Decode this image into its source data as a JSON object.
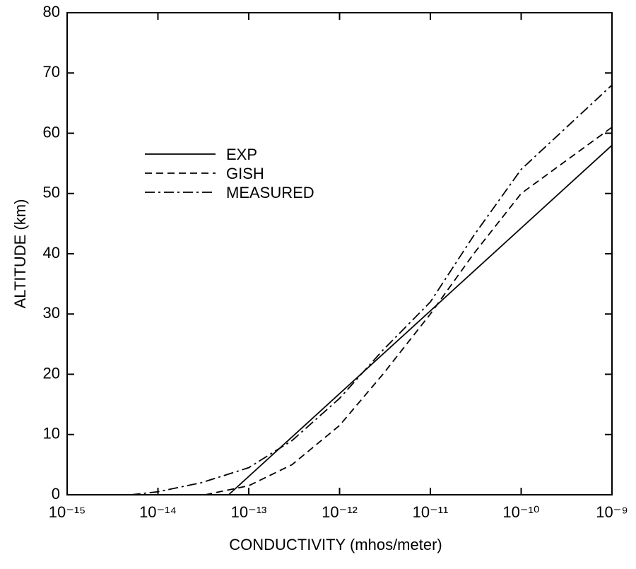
{
  "chart_data": {
    "type": "line",
    "xlabel": "CONDUCTIVITY (mhos/meter)",
    "ylabel": "ALTITUDE (km)",
    "xscale": "log",
    "xlim": [
      1e-15,
      1e-09
    ],
    "xticks": [
      {
        "value": 1e-15,
        "label": "10⁻¹⁵"
      },
      {
        "value": 1e-14,
        "label": "10⁻¹⁴"
      },
      {
        "value": 1e-13,
        "label": "10⁻¹³"
      },
      {
        "value": 1e-12,
        "label": "10⁻¹²"
      },
      {
        "value": 1e-11,
        "label": "10⁻¹¹"
      },
      {
        "value": 1e-10,
        "label": "10⁻¹⁰"
      },
      {
        "value": 1e-09,
        "label": "10⁻⁹"
      }
    ],
    "ylim": [
      0,
      80
    ],
    "yticks": [
      0,
      10,
      20,
      30,
      40,
      50,
      60,
      70,
      80
    ],
    "legend": "upper left",
    "series": [
      {
        "name": "EXP",
        "color": "#000000",
        "style": "solid",
        "x": [
          6e-14,
          1e-09
        ],
        "values": [
          0,
          58
        ]
      },
      {
        "name": "GISH",
        "color": "#000000",
        "style": "dashed",
        "x": [
          3.3e-14,
          1e-13,
          3e-13,
          1e-12,
          3e-12,
          1e-11,
          3e-11,
          1e-10,
          1e-09
        ],
        "values": [
          0,
          1.5,
          5,
          11.5,
          20,
          30,
          40,
          50,
          61
        ]
      },
      {
        "name": "MEASURED",
        "color": "#000000",
        "style": "dashdot",
        "x": [
          5e-15,
          1e-14,
          3e-14,
          1e-13,
          3e-13,
          1e-12,
          3e-12,
          1e-11,
          3e-11,
          1e-10,
          1e-09
        ],
        "values": [
          0,
          0.5,
          2,
          4.5,
          9,
          16,
          24,
          32,
          43,
          54,
          68
        ]
      }
    ]
  }
}
